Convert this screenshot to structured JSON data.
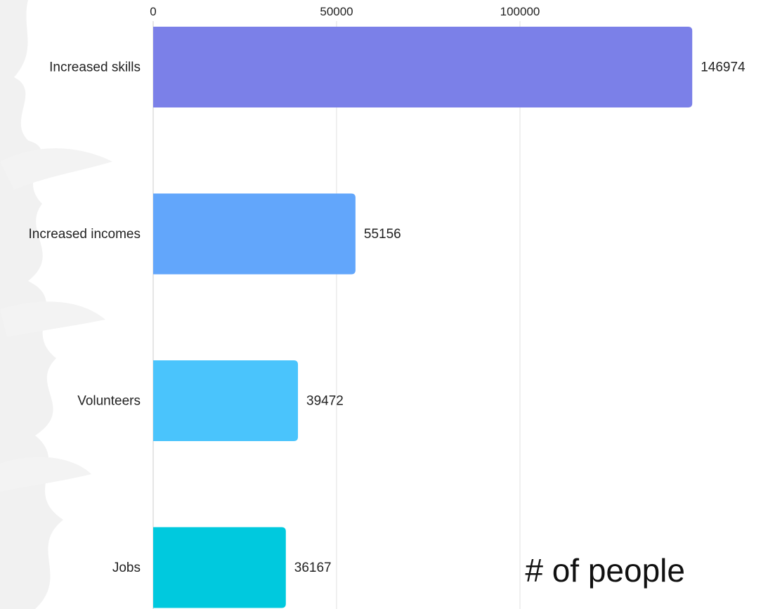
{
  "chart_data": {
    "type": "bar",
    "orientation": "horizontal",
    "categories": [
      "Increased skills",
      "Increased incomes",
      "Volunteers",
      "Jobs"
    ],
    "values": [
      146974,
      55156,
      39472,
      36167
    ],
    "value_labels": [
      "146974",
      "55156",
      "39472",
      "36167"
    ],
    "x_ticks": [
      0,
      50000,
      100000
    ],
    "x_tick_labels": [
      "0",
      "50000",
      "100000"
    ],
    "xlim": [
      0,
      150000
    ],
    "x_axis_position": "top",
    "grid": true,
    "annotation": "# of people",
    "colors": [
      "#7b80e8",
      "#62a6fb",
      "#4ac4fc",
      "#00c9de"
    ],
    "grid_color": "#e6e6e6",
    "text_color": "#222222"
  }
}
